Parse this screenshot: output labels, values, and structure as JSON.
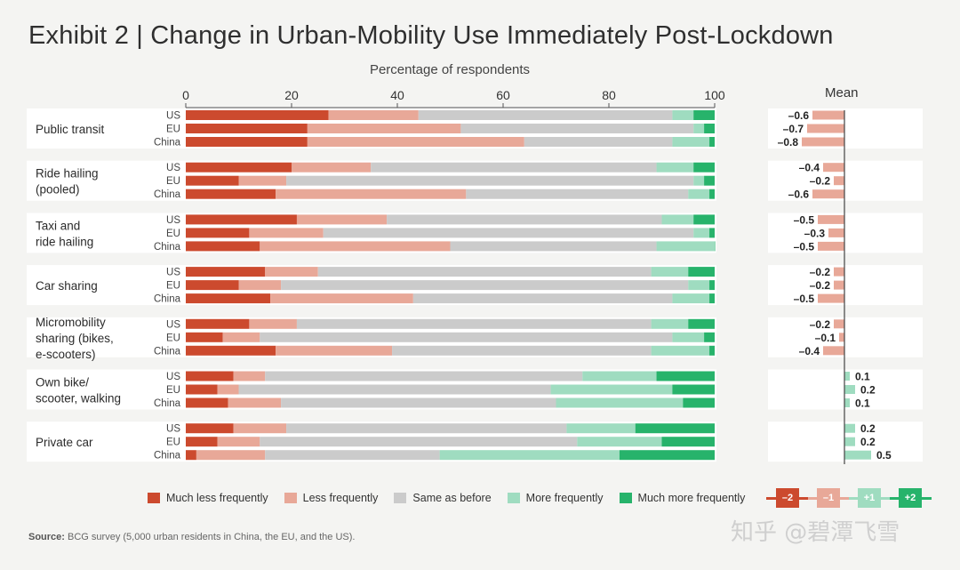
{
  "title": "Exhibit 2 | Change in Urban-Mobility Use Immediately Post-Lockdown",
  "colors": {
    "much_less": "#cc4a2e",
    "less": "#e8a898",
    "same": "#cbcbcb",
    "more": "#9fdcc0",
    "much_more": "#27b36b",
    "band": "#ffffff",
    "axis": "#555555"
  },
  "chart_data": {
    "type": "bar",
    "orientation": "horizontal-stacked",
    "xlabel": "Percentage of respondents",
    "xlim": [
      0,
      100
    ],
    "xticks": [
      0,
      20,
      40,
      60,
      80,
      100
    ],
    "mean_title": "Mean",
    "series_names": [
      "Much less frequently",
      "Less frequently",
      "Same as before",
      "More frequently",
      "Much more frequently"
    ],
    "groups": [
      {
        "label": "Public transit",
        "rows": [
          {
            "region": "US",
            "values": [
              27,
              17,
              48,
              4,
              4
            ],
            "mean": -0.6,
            "mean_label": "–0.6"
          },
          {
            "region": "EU",
            "values": [
              23,
              29,
              44,
              2,
              2
            ],
            "mean": -0.7,
            "mean_label": "–0.7"
          },
          {
            "region": "China",
            "values": [
              23,
              41,
              28,
              7,
              1
            ],
            "mean": -0.8,
            "mean_label": "–0.8"
          }
        ]
      },
      {
        "label": "Ride hailing (pooled)",
        "rows": [
          {
            "region": "US",
            "values": [
              20,
              15,
              54,
              7,
              4
            ],
            "mean": -0.4,
            "mean_label": "–0.4"
          },
          {
            "region": "EU",
            "values": [
              10,
              9,
              77,
              2,
              2
            ],
            "mean": -0.2,
            "mean_label": "–0.2"
          },
          {
            "region": "China",
            "values": [
              17,
              36,
              42,
              4,
              1
            ],
            "mean": -0.6,
            "mean_label": "–0.6"
          }
        ]
      },
      {
        "label": "Taxi and ride hailing",
        "rows": [
          {
            "region": "US",
            "values": [
              21,
              17,
              52,
              6,
              4
            ],
            "mean": -0.5,
            "mean_label": "–0.5"
          },
          {
            "region": "EU",
            "values": [
              12,
              14,
              70,
              3,
              1
            ],
            "mean": -0.3,
            "mean_label": "–0.3"
          },
          {
            "region": "China",
            "values": [
              14,
              36,
              39,
              11,
              0.5
            ],
            "mean": -0.5,
            "mean_label": "–0.5"
          }
        ]
      },
      {
        "label": "Car sharing",
        "rows": [
          {
            "region": "US",
            "values": [
              15,
              10,
              63,
              7,
              5
            ],
            "mean": -0.2,
            "mean_label": "–0.2"
          },
          {
            "region": "EU",
            "values": [
              10,
              8,
              77,
              4,
              1
            ],
            "mean": -0.2,
            "mean_label": "–0.2"
          },
          {
            "region": "China",
            "values": [
              16,
              27,
              49,
              7,
              1
            ],
            "mean": -0.5,
            "mean_label": "–0.5"
          }
        ]
      },
      {
        "label": "Micromobility sharing (bikes, e-scooters)",
        "rows": [
          {
            "region": "US",
            "values": [
              12,
              9,
              67,
              7,
              5
            ],
            "mean": -0.2,
            "mean_label": "–0.2"
          },
          {
            "region": "EU",
            "values": [
              7,
              7,
              78,
              6,
              2
            ],
            "mean": -0.1,
            "mean_label": "–0.1"
          },
          {
            "region": "China",
            "values": [
              17,
              22,
              49,
              11,
              1
            ],
            "mean": -0.4,
            "mean_label": "–0.4"
          }
        ]
      },
      {
        "label": "Own bike/ scooter, walking",
        "rows": [
          {
            "region": "US",
            "values": [
              9,
              6,
              60,
              14,
              11
            ],
            "mean": 0.1,
            "mean_label": "0.1"
          },
          {
            "region": "EU",
            "values": [
              6,
              4,
              59,
              23,
              8
            ],
            "mean": 0.2,
            "mean_label": "0.2"
          },
          {
            "region": "China",
            "values": [
              8,
              10,
              52,
              24,
              6
            ],
            "mean": 0.1,
            "mean_label": "0.1"
          }
        ]
      },
      {
        "label": "Private car",
        "rows": [
          {
            "region": "US",
            "values": [
              9,
              10,
              53,
              13,
              15
            ],
            "mean": 0.2,
            "mean_label": "0.2"
          },
          {
            "region": "EU",
            "values": [
              6,
              8,
              60,
              16,
              10
            ],
            "mean": 0.2,
            "mean_label": "0.2"
          },
          {
            "region": "China",
            "values": [
              2,
              13,
              33,
              34,
              18
            ],
            "mean": 0.5,
            "mean_label": "0.5"
          }
        ]
      }
    ]
  },
  "group_label_lines": [
    [
      "Public transit"
    ],
    [
      "Ride hailing",
      "(pooled)"
    ],
    [
      "Taxi and",
      "ride hailing"
    ],
    [
      "Car sharing"
    ],
    [
      "Micromobility",
      "sharing (bikes,",
      "e-scooters)"
    ],
    [
      "Own bike/",
      "scooter, walking"
    ],
    [
      "Private car"
    ]
  ],
  "legend": {
    "much_less": "Much less frequently",
    "less": "Less frequently",
    "same": "Same as before",
    "more": "More frequently",
    "much_more": "Much more frequently"
  },
  "scale": {
    "m2": "–2",
    "m1": "–1",
    "p1": "+1",
    "p2": "+2"
  },
  "source": {
    "label": "Source:",
    "text": " BCG survey (5,000 urban residents in China, the EU, and the US)."
  },
  "watermark": "知乎 @碧潭飞雪"
}
